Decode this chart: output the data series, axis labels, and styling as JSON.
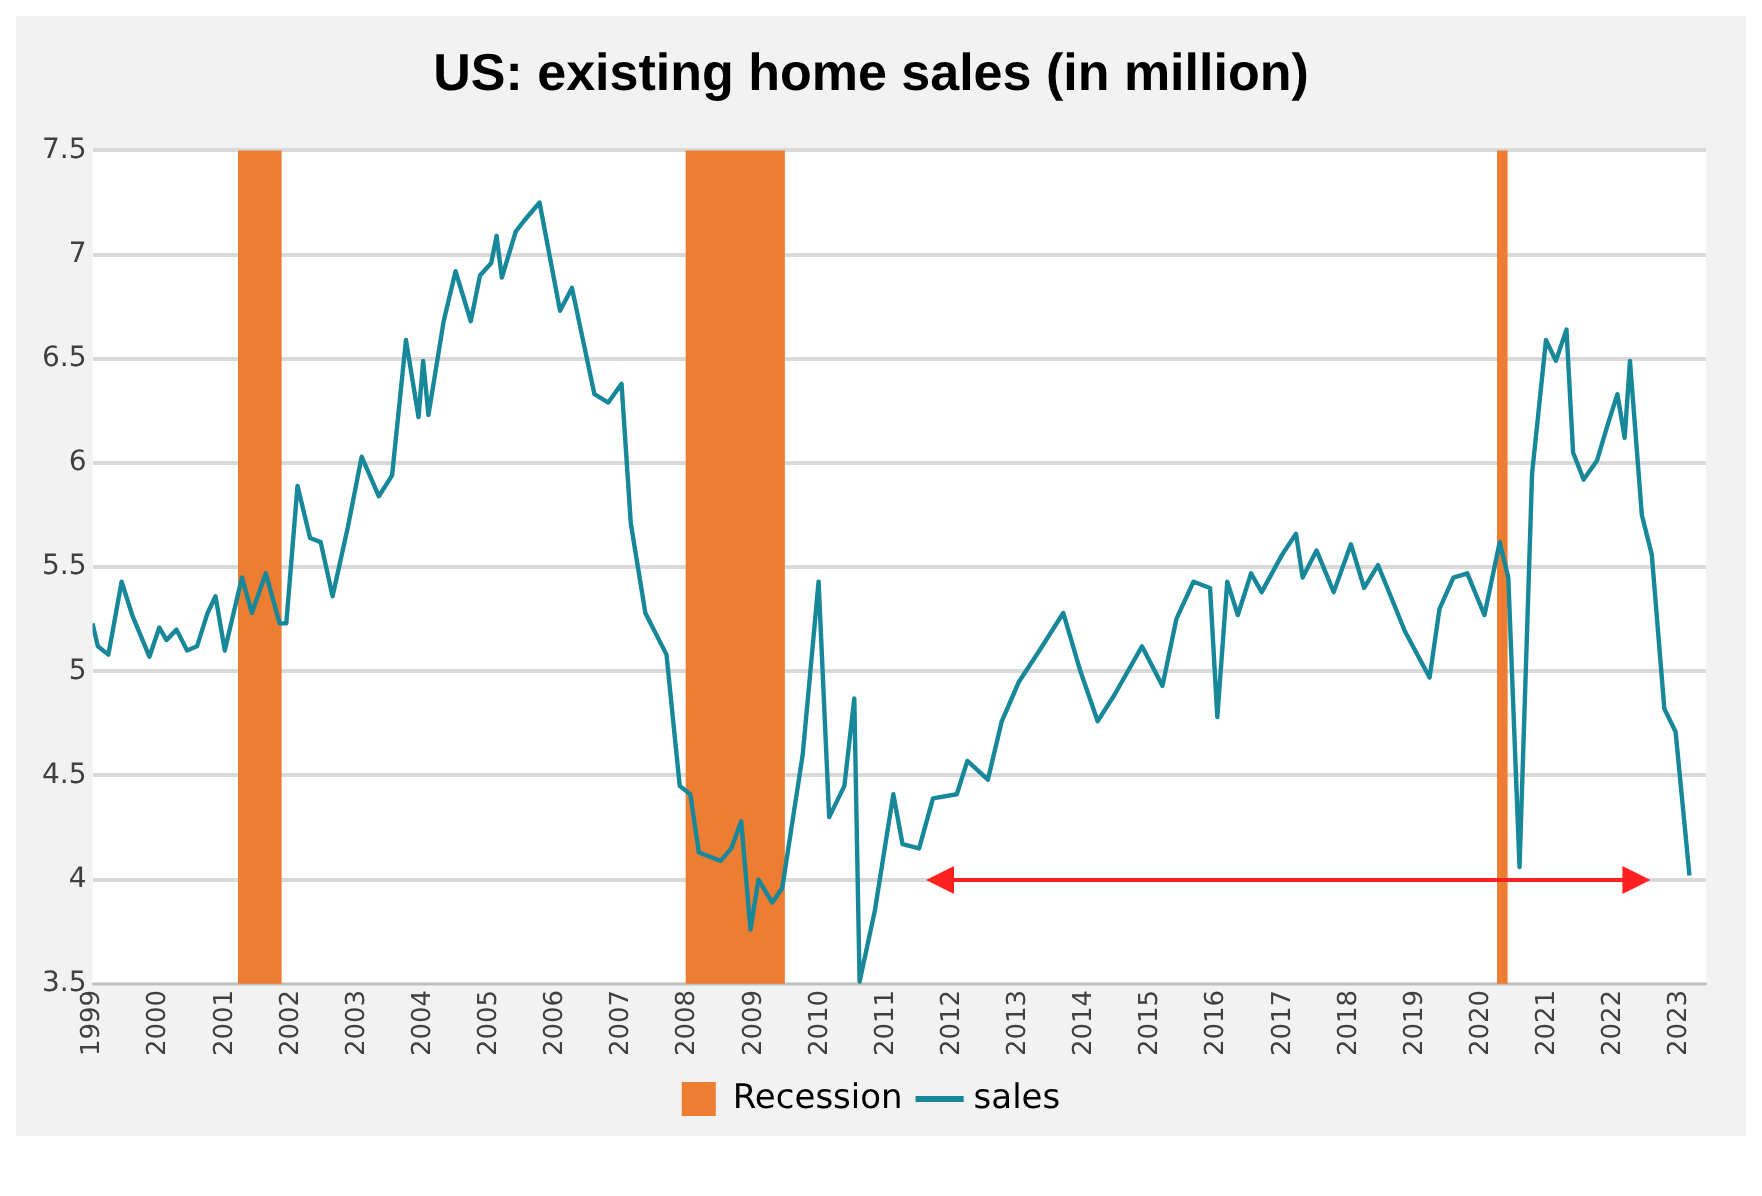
{
  "chart_data": {
    "type": "line",
    "title": "US: existing home sales (in million)",
    "x": [
      1999.0,
      1999.08,
      1999.24,
      1999.44,
      1999.6,
      1999.86,
      2000.01,
      2000.12,
      2000.27,
      2000.43,
      2000.58,
      2000.74,
      2000.86,
      2001.0,
      2001.26,
      2001.41,
      2001.62,
      2001.83,
      2001.93,
      2002.1,
      2002.29,
      2002.45,
      2002.63,
      2002.86,
      2003.07,
      2003.33,
      2003.53,
      2003.74,
      2003.93,
      2004.0,
      2004.08,
      2004.31,
      2004.49,
      2004.72,
      2004.86,
      2005.03,
      2005.11,
      2005.19,
      2005.4,
      2005.52,
      2005.76,
      2006.07,
      2006.25,
      2006.59,
      2006.8,
      2007.0,
      2007.14,
      2007.36,
      2007.68,
      2007.88,
      2008.04,
      2008.17,
      2008.5,
      2008.66,
      2008.81,
      2008.95,
      2009.07,
      2009.28,
      2009.43,
      2009.74,
      2009.98,
      2010.14,
      2010.37,
      2010.52,
      2010.6,
      2010.83,
      2011.11,
      2011.25,
      2011.5,
      2011.71,
      2012.07,
      2012.23,
      2012.54,
      2012.75,
      2013.01,
      2013.32,
      2013.68,
      2013.94,
      2014.2,
      2014.46,
      2014.87,
      2015.18,
      2015.39,
      2015.65,
      2015.9,
      2016.01,
      2016.16,
      2016.32,
      2016.52,
      2016.68,
      2016.99,
      2017.2,
      2017.3,
      2017.51,
      2017.77,
      2018.03,
      2018.23,
      2018.44,
      2018.85,
      2019.22,
      2019.37,
      2019.58,
      2019.79,
      2020.05,
      2020.28,
      2020.41,
      2020.58,
      2020.77,
      2020.98,
      2021.13,
      2021.29,
      2021.39,
      2021.55,
      2021.75,
      2021.91,
      2022.06,
      2022.17,
      2022.25,
      2022.43,
      2022.58,
      2022.77,
      2022.94,
      2023.15
    ],
    "series": [
      {
        "name": "sales",
        "color": "#17879a",
        "values": [
          5.23,
          5.12,
          5.08,
          5.43,
          5.27,
          5.07,
          5.21,
          5.15,
          5.2,
          5.1,
          5.12,
          5.28,
          5.36,
          5.1,
          5.45,
          5.28,
          5.47,
          5.23,
          5.23,
          5.89,
          5.64,
          5.62,
          5.36,
          5.69,
          6.03,
          5.84,
          5.94,
          6.59,
          6.22,
          6.49,
          6.23,
          6.68,
          6.92,
          6.68,
          6.9,
          6.96,
          7.09,
          6.89,
          7.11,
          7.16,
          7.25,
          6.73,
          6.84,
          6.33,
          6.29,
          6.38,
          5.71,
          5.28,
          5.08,
          4.45,
          4.41,
          4.13,
          4.09,
          4.15,
          4.28,
          3.76,
          4.0,
          3.89,
          3.96,
          4.6,
          5.43,
          4.3,
          4.45,
          4.87,
          3.51,
          3.85,
          4.41,
          4.17,
          4.15,
          4.39,
          4.41,
          4.57,
          4.48,
          4.76,
          4.95,
          5.1,
          5.28,
          5.0,
          4.76,
          4.89,
          5.12,
          4.93,
          5.25,
          5.43,
          5.4,
          4.78,
          5.43,
          5.27,
          5.47,
          5.38,
          5.56,
          5.66,
          5.45,
          5.58,
          5.38,
          5.61,
          5.4,
          5.51,
          5.19,
          4.97,
          5.3,
          5.45,
          5.47,
          5.27,
          5.62,
          5.45,
          4.06,
          5.95,
          6.59,
          6.49,
          6.64,
          6.05,
          5.92,
          6.01,
          6.18,
          6.33,
          6.12,
          6.49,
          5.75,
          5.56,
          4.82,
          4.71,
          4.02
        ]
      }
    ],
    "xlim": [
      1999,
      2023.4
    ],
    "xticks": [
      1999,
      2000,
      2001,
      2002,
      2003,
      2004,
      2005,
      2006,
      2007,
      2008,
      2009,
      2010,
      2011,
      2012,
      2013,
      2014,
      2015,
      2016,
      2017,
      2018,
      2019,
      2020,
      2021,
      2022,
      2023
    ],
    "ylim": [
      3.5,
      7.5
    ],
    "yticks": [
      3.5,
      4,
      4.5,
      5,
      5.5,
      6,
      6.5,
      7,
      7.5
    ],
    "bands": [
      {
        "axis": "x",
        "from": 2001.2,
        "to": 2001.86,
        "label": "Recession",
        "color": "#ed7d31"
      },
      {
        "axis": "x",
        "from": 2007.97,
        "to": 2009.47,
        "color": "#ed7d31"
      },
      {
        "axis": "x",
        "from": 2020.24,
        "to": 2020.4,
        "color": "#ed7d31"
      }
    ],
    "grid": "y",
    "legend": "bottom",
    "marker": "none",
    "line_style": "solid"
  }
}
